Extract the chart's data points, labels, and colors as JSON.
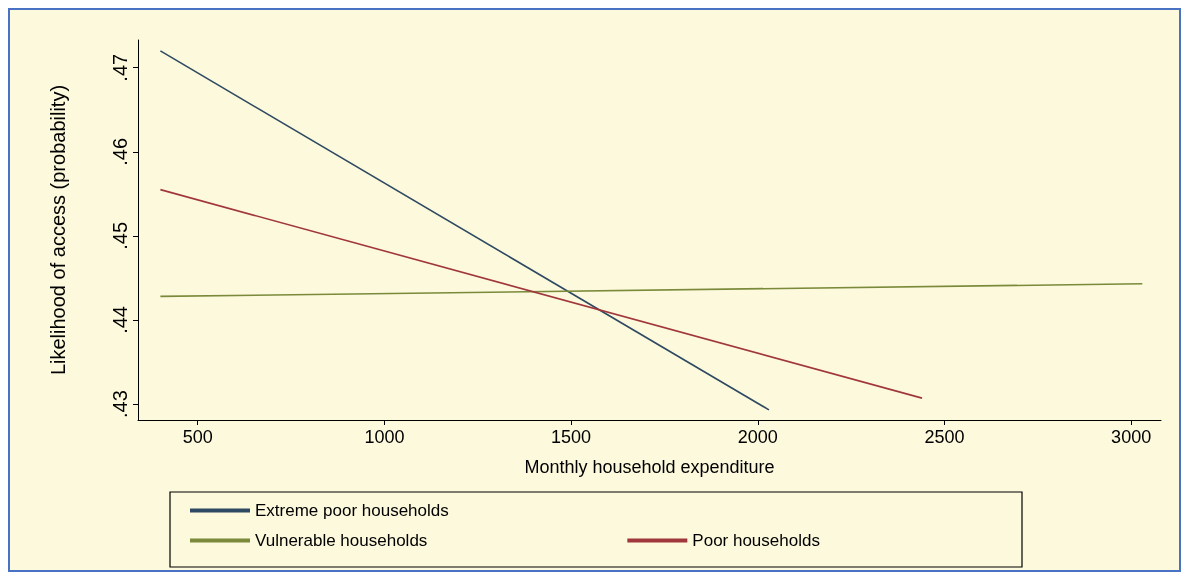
{
  "chart_data": {
    "type": "line",
    "xlabel": "Monthly household expenditure",
    "ylabel": "Likelihood of access (probability)",
    "xlim": [
      340,
      3080
    ],
    "xticks": [
      500,
      1000,
      1500,
      2000,
      2500,
      3000
    ],
    "ylim": [
      0.4281,
      0.4733
    ],
    "yticks": [
      {
        "value": 0.43,
        "label": ".43"
      },
      {
        "value": 0.44,
        "label": ".44"
      },
      {
        "value": 0.45,
        "label": ".45"
      },
      {
        "value": 0.46,
        "label": ".46"
      },
      {
        "value": 0.47,
        "label": ".47"
      }
    ],
    "grid": false,
    "legend": "bottom",
    "marker": "none",
    "line_style": "solid",
    "series": [
      {
        "name": "Extreme poor households",
        "color": "#2e4a62",
        "x": [
          400,
          2030
        ],
        "values": [
          0.472,
          0.4293
        ]
      },
      {
        "name": "Vulnerable households",
        "color": "#7a8a3a",
        "x": [
          400,
          3030
        ],
        "values": [
          0.4428,
          0.4443
        ]
      },
      {
        "name": "Poor households",
        "color": "#a0373c",
        "x": [
          400,
          2440
        ],
        "values": [
          0.4555,
          0.4307
        ]
      }
    ]
  }
}
